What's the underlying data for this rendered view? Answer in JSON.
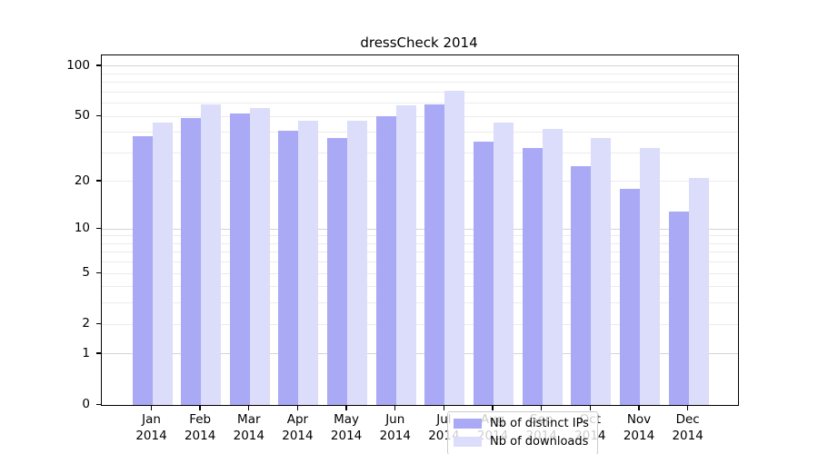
{
  "title": "dressCheck 2014",
  "chart_data": {
    "type": "bar",
    "title": "dressCheck 2014",
    "xlabel": "",
    "ylabel": "",
    "scale": "log1p",
    "ylim": [
      0,
      116
    ],
    "categories": [
      "Jan",
      "Feb",
      "Mar",
      "Apr",
      "May",
      "Jun",
      "Jul",
      "Aug",
      "Sep",
      "Oct",
      "Nov",
      "Dec"
    ],
    "category_year": "2014",
    "series": [
      {
        "name": "Nb of distinct IPs",
        "color": "#a9a9f6",
        "values": [
          38,
          49,
          52,
          41,
          37,
          50,
          59,
          35,
          32,
          25,
          18,
          13
        ]
      },
      {
        "name": "Nb of downloads",
        "color": "#dcdcfb",
        "values": [
          46,
          59,
          56,
          47,
          47,
          58,
          71,
          46,
          42,
          37,
          32,
          21
        ]
      }
    ],
    "y_ticks": [
      0,
      1,
      2,
      5,
      10,
      20,
      50,
      100
    ],
    "grid": {
      "minor_values": [
        2,
        3,
        4,
        5,
        6,
        7,
        8,
        9,
        20,
        30,
        40,
        50,
        60,
        70,
        80,
        90
      ],
      "major_values": [
        1,
        10,
        100
      ],
      "minor_color": "#ebebeb",
      "major_color": "#d4d4d4"
    },
    "legend_position": "bottom-center"
  },
  "colors": {
    "background": "#ffffff",
    "axis": "#000000",
    "text": "#000000",
    "bar_distinct_ips": "#a9a9f6",
    "bar_downloads": "#dcdcfb"
  }
}
